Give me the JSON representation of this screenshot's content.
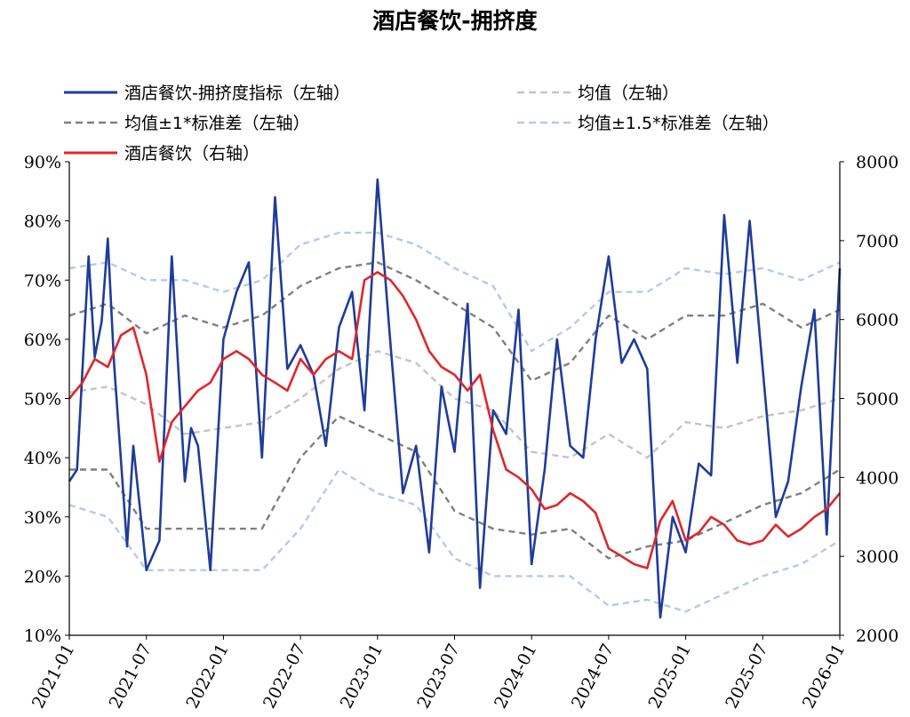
{
  "chart_data": {
    "type": "line",
    "title": "酒店餐饮-拥挤度",
    "x_axis": {
      "ticks": [
        "2021-01",
        "2021-07",
        "2022-01",
        "2022-07",
        "2023-01",
        "2023-07",
        "2024-01",
        "2024-07",
        "2025-01",
        "2025-07",
        "2026-01"
      ]
    },
    "y_left": {
      "ticks": [
        "10%",
        "20%",
        "30%",
        "40%",
        "50%",
        "60%",
        "70%",
        "80%",
        "90%"
      ],
      "range": [
        10,
        90
      ]
    },
    "y_right": {
      "ticks": [
        "2000",
        "3000",
        "4000",
        "5000",
        "6000",
        "7000",
        "8000"
      ],
      "range": [
        2000,
        8000
      ]
    },
    "legend_placement": "top",
    "series": [
      {
        "name": "酒店餐饮-拥挤度指标（左轴）",
        "axis": "left",
        "color": "#1f3c99",
        "style": "solid",
        "t": [
          0,
          0.1,
          0.25,
          0.33,
          0.42,
          0.5,
          0.58,
          0.75,
          0.83,
          0.92,
          1.0,
          1.17,
          1.33,
          1.5,
          1.58,
          1.67,
          1.83,
          2.0,
          2.17,
          2.33,
          2.5,
          2.67,
          2.83,
          3.0,
          3.17,
          3.33,
          3.5,
          3.67,
          3.83,
          4.0,
          4.17,
          4.33,
          4.5,
          4.67,
          4.83,
          5.0,
          5.17,
          5.33,
          5.5,
          5.67,
          5.83,
          6.0,
          6.17,
          6.33,
          6.5,
          6.67,
          6.83,
          7.0,
          7.17,
          7.33,
          7.5,
          7.67,
          7.83,
          8.0,
          8.17,
          8.33,
          8.5,
          8.67,
          8.83,
          9.0,
          9.17,
          9.33,
          9.5,
          9.67,
          9.83,
          10.0
        ],
        "values": [
          36,
          38,
          74,
          57,
          63,
          77,
          56,
          25,
          42,
          31,
          21,
          26,
          74,
          36,
          45,
          42,
          21,
          60,
          68,
          73,
          40,
          84,
          55,
          59,
          54,
          42,
          62,
          68,
          48,
          87,
          59,
          34,
          42,
          24,
          52,
          41,
          66,
          18,
          48,
          44,
          65,
          22,
          38,
          60,
          42,
          40,
          60,
          74,
          56,
          60,
          55,
          13,
          30,
          24,
          39,
          37,
          81,
          56,
          80,
          55,
          30,
          36,
          52,
          65,
          27,
          72
        ]
      },
      {
        "name": "均值（左轴）",
        "axis": "left",
        "color": "#c4c4c4",
        "style": "dashed",
        "t": [
          0,
          0.5,
          1.0,
          1.5,
          2.0,
          2.5,
          3.0,
          3.5,
          4.0,
          4.5,
          5.0,
          5.5,
          6.0,
          6.5,
          7.0,
          7.5,
          8.0,
          8.5,
          9.0,
          9.5,
          10.0
        ],
        "values": [
          51,
          52,
          49,
          44,
          45,
          46,
          50,
          55,
          58,
          56,
          50,
          48,
          41,
          40,
          44,
          40,
          46,
          45,
          47,
          48,
          50
        ]
      },
      {
        "name": "均值±1*标准差（左轴）",
        "axis": "left",
        "color": "#7f7f7f",
        "style": "dashed",
        "t": [
          0,
          0.5,
          1.0,
          1.5,
          2.0,
          2.5,
          3.0,
          3.5,
          4.0,
          4.5,
          5.0,
          5.5,
          6.0,
          6.5,
          7.0,
          7.5,
          8.0,
          8.5,
          9.0,
          9.5,
          10.0
        ],
        "values": [
          64,
          66,
          61,
          64,
          62,
          64,
          69,
          72,
          73,
          70,
          66,
          62,
          53,
          56,
          64,
          60,
          64,
          64,
          66,
          62,
          65
        ]
      },
      {
        "name": "均值±1*标准差（左轴）",
        "axis": "left",
        "color": "#7f7f7f",
        "style": "dashed",
        "legend": false,
        "t": [
          0,
          0.5,
          1.0,
          1.5,
          2.0,
          2.5,
          3.0,
          3.5,
          4.0,
          4.5,
          5.0,
          5.5,
          6.0,
          6.5,
          7.0,
          7.5,
          8.0,
          8.5,
          9.0,
          9.5,
          10.0
        ],
        "values": [
          38,
          38,
          28,
          28,
          28,
          28,
          40,
          47,
          44,
          41,
          31,
          28,
          27,
          28,
          23,
          25,
          26,
          29,
          32,
          34,
          38
        ]
      },
      {
        "name": "均值±1.5*标准差（左轴）",
        "axis": "left",
        "color": "#b7c9e6",
        "style": "dashed",
        "t": [
          0,
          0.5,
          1.0,
          1.5,
          2.0,
          2.5,
          3.0,
          3.5,
          4.0,
          4.5,
          5.0,
          5.5,
          6.0,
          6.5,
          7.0,
          7.5,
          8.0,
          8.5,
          9.0,
          9.5,
          10.0
        ],
        "values": [
          72,
          73,
          70,
          70,
          68,
          70,
          76,
          78,
          78,
          76,
          72,
          69,
          58,
          62,
          68,
          68,
          72,
          71,
          72,
          70,
          73
        ]
      },
      {
        "name": "均值±1.5*标准差（左轴）",
        "axis": "left",
        "color": "#b7c9e6",
        "style": "dashed",
        "legend": false,
        "t": [
          0,
          0.5,
          1.0,
          1.5,
          2.0,
          2.5,
          3.0,
          3.5,
          4.0,
          4.5,
          5.0,
          5.5,
          6.0,
          6.5,
          7.0,
          7.5,
          8.0,
          8.5,
          9.0,
          9.5,
          10.0
        ],
        "values": [
          32,
          30,
          21,
          21,
          21,
          21,
          28,
          38,
          34,
          32,
          23,
          20,
          20,
          20,
          15,
          16,
          14,
          17,
          20,
          22,
          26
        ]
      },
      {
        "name": "酒店餐饮（右轴）",
        "axis": "right",
        "color": "#e0262a",
        "style": "solid",
        "t": [
          0,
          0.17,
          0.33,
          0.5,
          0.67,
          0.83,
          1.0,
          1.17,
          1.33,
          1.67,
          1.83,
          2.0,
          2.17,
          2.33,
          2.5,
          2.67,
          2.83,
          3.0,
          3.17,
          3.33,
          3.5,
          3.67,
          3.83,
          4.0,
          4.17,
          4.33,
          4.5,
          4.67,
          4.83,
          5.0,
          5.17,
          5.33,
          5.5,
          5.67,
          5.83,
          6.0,
          6.17,
          6.33,
          6.5,
          6.67,
          6.83,
          7.0,
          7.17,
          7.33,
          7.5,
          7.67,
          7.83,
          8.0,
          8.17,
          8.33,
          8.5,
          8.67,
          8.83,
          9.0,
          9.17,
          9.33,
          9.5,
          9.67,
          9.83,
          10.0
        ],
        "values": [
          5000,
          5200,
          5500,
          5400,
          5800,
          5900,
          5300,
          4200,
          4700,
          5100,
          5200,
          5500,
          5600,
          5500,
          5300,
          5200,
          5100,
          5500,
          5300,
          5500,
          5600,
          5500,
          6500,
          6600,
          6500,
          6300,
          6000,
          5600,
          5400,
          5300,
          5100,
          5300,
          4600,
          4100,
          4000,
          3850,
          3600,
          3650,
          3800,
          3700,
          3550,
          3100,
          3000,
          2900,
          2850,
          3450,
          3700,
          3200,
          3300,
          3500,
          3400,
          3200,
          3150,
          3200,
          3400,
          3250,
          3350,
          3500,
          3600,
          3800
        ]
      }
    ]
  }
}
